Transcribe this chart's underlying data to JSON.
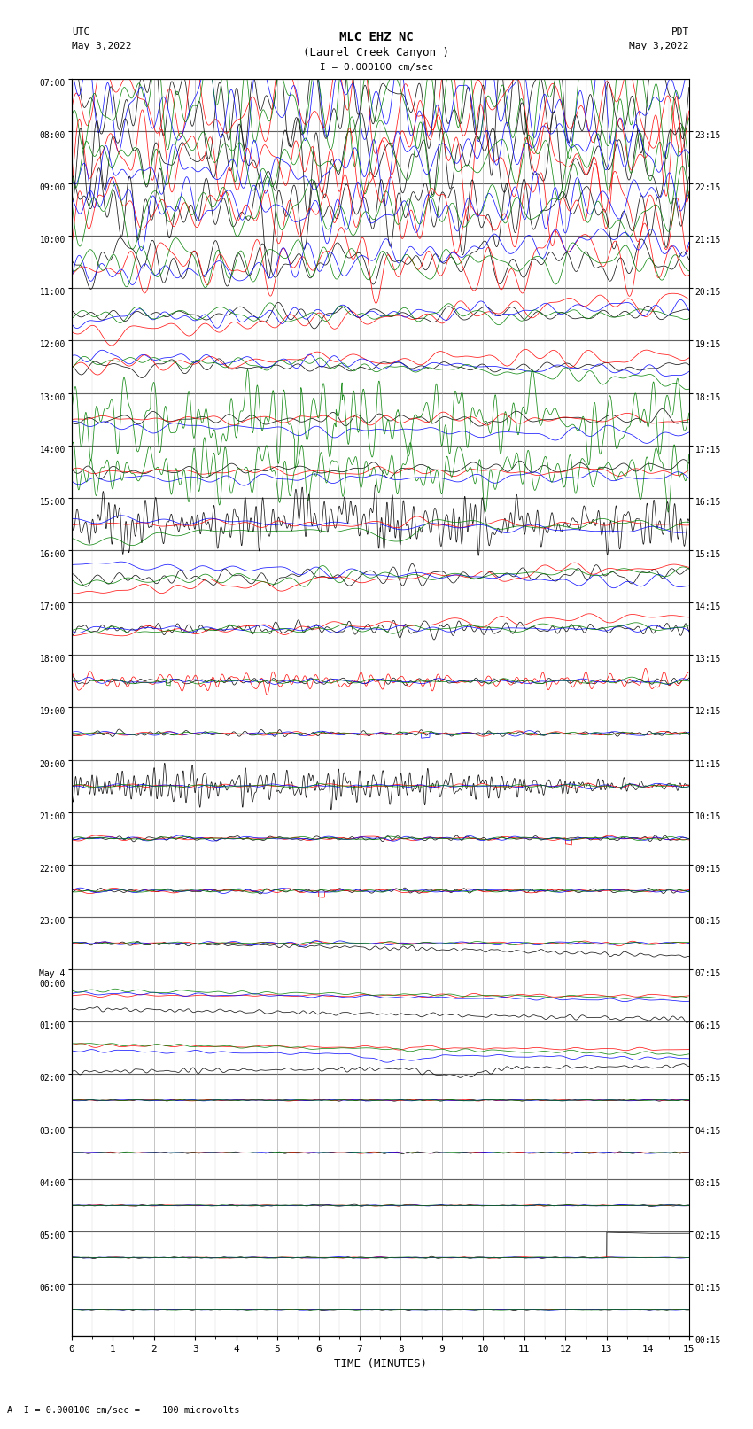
{
  "title_line1": "MLC EHZ NC",
  "title_line2": "(Laurel Creek Canyon )",
  "scale_label": "I = 0.000100 cm/sec",
  "left_header": "UTC",
  "left_date": "May 3,2022",
  "right_header": "PDT",
  "right_date": "May 3,2022",
  "xlabel": "TIME (MINUTES)",
  "footer": "A  I = 0.000100 cm/sec =    100 microvolts",
  "xlim": [
    0,
    15
  ],
  "num_rows": 24,
  "fig_width": 8.5,
  "fig_height": 16.13,
  "plot_bg": "#ffffff",
  "grid_color": "#999999",
  "utc_labels": [
    "07:00",
    "08:00",
    "09:00",
    "10:00",
    "11:00",
    "12:00",
    "13:00",
    "14:00",
    "15:00",
    "16:00",
    "17:00",
    "18:00",
    "19:00",
    "20:00",
    "21:00",
    "22:00",
    "23:00",
    "May 4\n00:00",
    "01:00",
    "02:00",
    "03:00",
    "04:00",
    "05:00",
    "06:00"
  ],
  "pdt_labels": [
    "00:15",
    "01:15",
    "02:15",
    "03:15",
    "04:15",
    "05:15",
    "06:15",
    "07:15",
    "08:15",
    "09:15",
    "10:15",
    "11:15",
    "12:15",
    "13:15",
    "14:15",
    "15:15",
    "16:15",
    "17:15",
    "18:15",
    "19:15",
    "20:15",
    "21:15",
    "22:15",
    "23:15"
  ],
  "noise_seed": 42
}
